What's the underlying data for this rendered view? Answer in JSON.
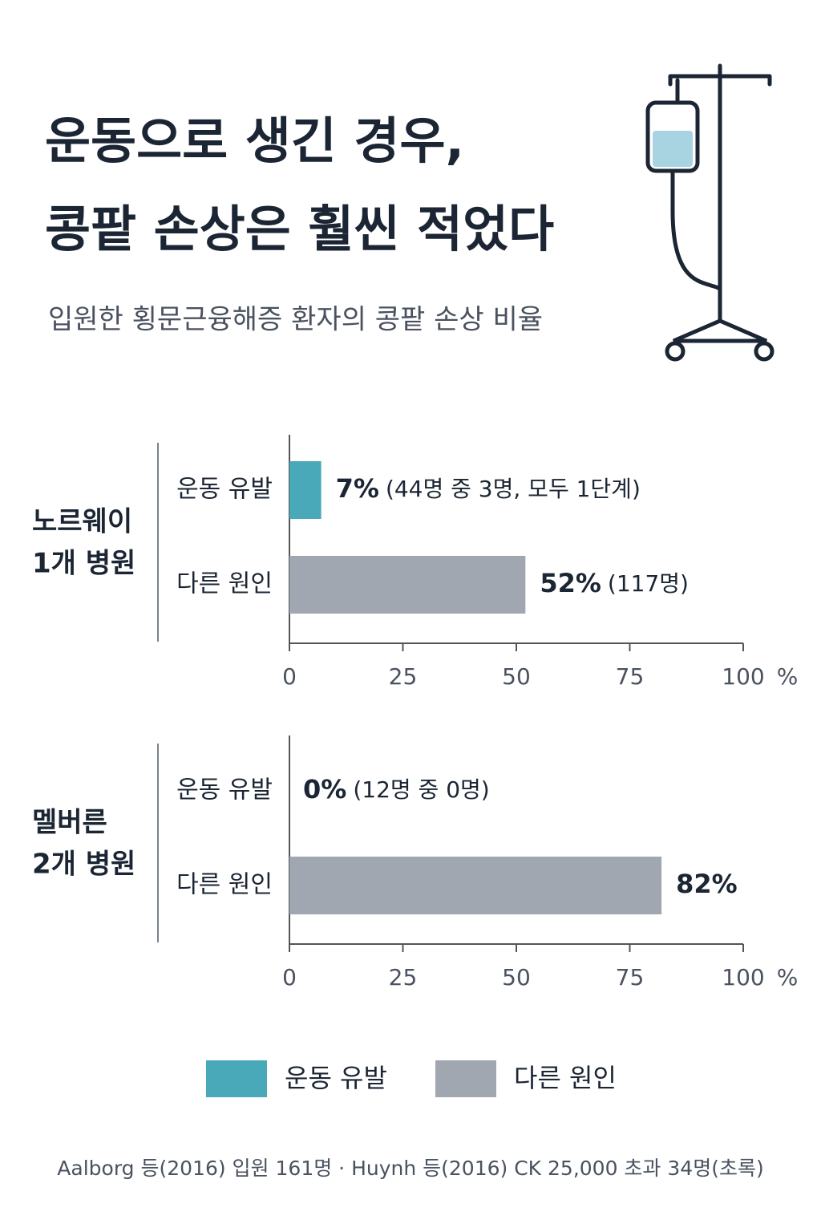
{
  "title": [
    "운동으로 생긴 경우,",
    "콩팥 손상은 훨씬 적었다"
  ],
  "subtitle": "입원한 횡문근융해증 환자의 콩팥 손상 비율",
  "chart_data": [
    {
      "type": "bar",
      "group_label": [
        "노르웨이",
        "1개 병원"
      ],
      "categories": [
        "운동 유발",
        "다른 원인"
      ],
      "values": [
        7,
        52
      ],
      "value_labels": [
        "7%",
        "52%"
      ],
      "notes": [
        "(44명 중 3명, 모두 1단계)",
        "(117명)"
      ],
      "colors": [
        "#4aa9b9",
        "#a0a7b1"
      ],
      "xlim": [
        0,
        100
      ],
      "xticks": [
        0,
        25,
        50,
        75,
        100
      ],
      "xlabel": "%"
    },
    {
      "type": "bar",
      "group_label": [
        "멜버른",
        "2개 병원"
      ],
      "categories": [
        "운동 유발",
        "다른 원인"
      ],
      "values": [
        0,
        82
      ],
      "value_labels": [
        "0%",
        "82%"
      ],
      "notes": [
        "(12명 중 0명)",
        null
      ],
      "colors": [
        "#4aa9b9",
        "#a0a7b1"
      ],
      "xlim": [
        0,
        100
      ],
      "xticks": [
        0,
        25,
        50,
        75,
        100
      ],
      "xlabel": "%"
    }
  ],
  "legend": [
    {
      "name": "운동 유발",
      "color": "#4aa9b9"
    },
    {
      "name": "다른 원인",
      "color": "#a0a7b1"
    }
  ],
  "source": "Aalborg 등(2016) 입원 161명 · Huynh 등(2016) CK 25,000 초과 34명(초록)"
}
